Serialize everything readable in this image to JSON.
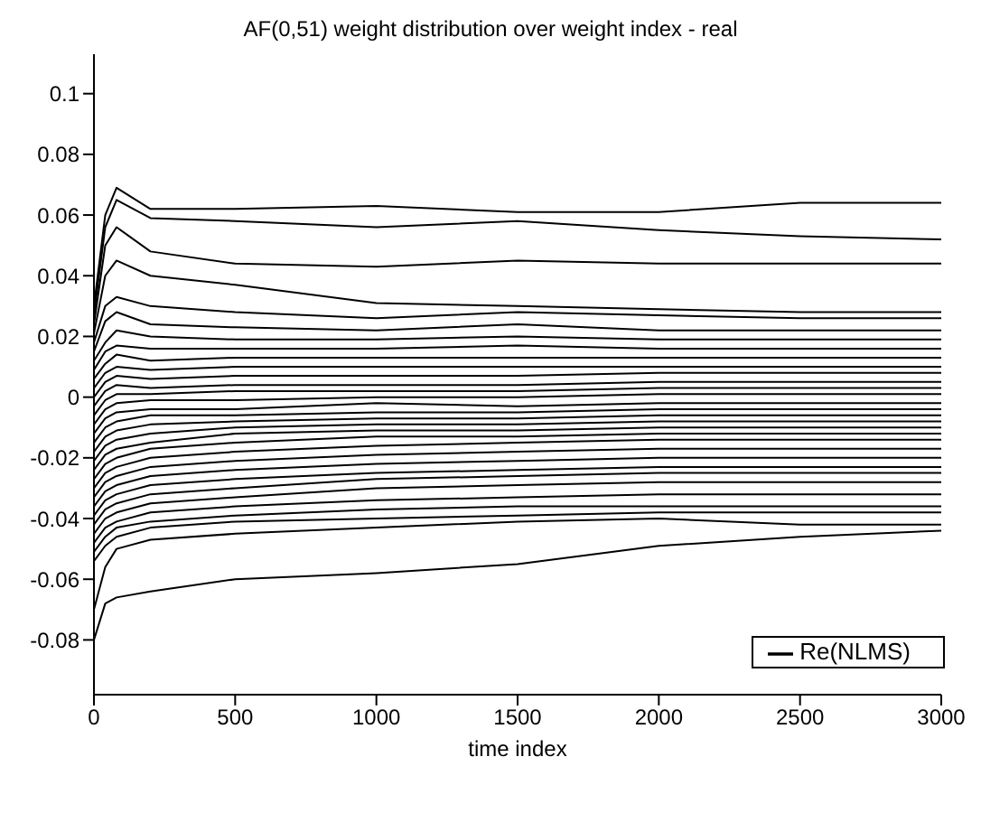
{
  "chart_data": {
    "type": "line",
    "title": "AF(0,51) weight distribution over weight index - real",
    "xlabel": "time index",
    "x": [
      0,
      40,
      80,
      200,
      500,
      1000,
      1500,
      2000,
      2500,
      3000
    ],
    "xlim": [
      0,
      3000
    ],
    "xticks": [
      0,
      500,
      1000,
      1500,
      2000,
      2500,
      3000
    ],
    "ylim": [
      -0.098,
      0.113
    ],
    "yticks": [
      -0.08,
      -0.06,
      -0.04,
      -0.02,
      0,
      0.02,
      0.04,
      0.06,
      0.08,
      0.1
    ],
    "legend": "bottom right",
    "grid": false,
    "marker": "none",
    "line_style": "solid",
    "series": [
      {
        "name": "Re(NLMS)",
        "color": "#000000",
        "values": [
          0.03,
          0.06,
          0.069,
          0.062,
          0.062,
          0.063,
          0.061,
          0.061,
          0.064,
          0.064
        ]
      },
      {
        "color": "#000000",
        "values": [
          0.027,
          0.056,
          0.065,
          0.059,
          0.058,
          0.056,
          0.058,
          0.055,
          0.053,
          0.052
        ]
      },
      {
        "color": "#000000",
        "values": [
          0.024,
          0.05,
          0.056,
          0.048,
          0.044,
          0.043,
          0.045,
          0.044,
          0.044,
          0.044
        ]
      },
      {
        "color": "#000000",
        "values": [
          0.021,
          0.04,
          0.045,
          0.04,
          0.037,
          0.031,
          0.03,
          0.029,
          0.028,
          0.028
        ]
      },
      {
        "color": "#000000",
        "values": [
          0.018,
          0.03,
          0.033,
          0.03,
          0.028,
          0.026,
          0.028,
          0.027,
          0.026,
          0.026
        ]
      },
      {
        "color": "#000000",
        "values": [
          0.015,
          0.025,
          0.028,
          0.024,
          0.023,
          0.022,
          0.024,
          0.022,
          0.022,
          0.022
        ]
      },
      {
        "color": "#000000",
        "values": [
          0.012,
          0.018,
          0.022,
          0.02,
          0.019,
          0.019,
          0.02,
          0.019,
          0.019,
          0.019
        ]
      },
      {
        "color": "#000000",
        "values": [
          0.009,
          0.015,
          0.017,
          0.016,
          0.016,
          0.016,
          0.017,
          0.016,
          0.016,
          0.016
        ]
      },
      {
        "color": "#000000",
        "values": [
          0.006,
          0.011,
          0.014,
          0.012,
          0.013,
          0.013,
          0.013,
          0.013,
          0.013,
          0.013
        ]
      },
      {
        "color": "#000000",
        "values": [
          0.003,
          0.008,
          0.01,
          0.009,
          0.01,
          0.01,
          0.01,
          0.01,
          0.01,
          0.01
        ]
      },
      {
        "color": "#000000",
        "values": [
          0.0,
          0.005,
          0.007,
          0.006,
          0.007,
          0.007,
          0.007,
          0.008,
          0.008,
          0.008
        ]
      },
      {
        "color": "#000000",
        "values": [
          -0.003,
          0.002,
          0.004,
          0.003,
          0.004,
          0.004,
          0.004,
          0.005,
          0.005,
          0.005
        ]
      },
      {
        "color": "#000000",
        "values": [
          -0.006,
          -0.001,
          0.001,
          0.001,
          0.002,
          0.002,
          0.002,
          0.003,
          0.003,
          0.003
        ]
      },
      {
        "color": "#000000",
        "values": [
          -0.009,
          -0.004,
          -0.002,
          -0.001,
          -0.001,
          0.0,
          0.0,
          0.001,
          0.001,
          0.001
        ]
      },
      {
        "color": "#000000",
        "values": [
          -0.012,
          -0.007,
          -0.005,
          -0.004,
          -0.004,
          -0.002,
          -0.003,
          -0.002,
          -0.002,
          -0.002
        ]
      },
      {
        "color": "#000000",
        "values": [
          -0.015,
          -0.01,
          -0.008,
          -0.006,
          -0.006,
          -0.005,
          -0.005,
          -0.004,
          -0.004,
          -0.004
        ]
      },
      {
        "color": "#000000",
        "values": [
          -0.018,
          -0.013,
          -0.011,
          -0.009,
          -0.008,
          -0.007,
          -0.007,
          -0.006,
          -0.006,
          -0.006
        ]
      },
      {
        "color": "#000000",
        "values": [
          -0.021,
          -0.016,
          -0.014,
          -0.012,
          -0.01,
          -0.009,
          -0.009,
          -0.008,
          -0.008,
          -0.008
        ]
      },
      {
        "color": "#000000",
        "values": [
          -0.024,
          -0.019,
          -0.017,
          -0.015,
          -0.012,
          -0.011,
          -0.011,
          -0.01,
          -0.01,
          -0.01
        ]
      },
      {
        "color": "#000000",
        "values": [
          -0.027,
          -0.022,
          -0.02,
          -0.017,
          -0.015,
          -0.013,
          -0.013,
          -0.012,
          -0.012,
          -0.012
        ]
      },
      {
        "color": "#000000",
        "values": [
          -0.03,
          -0.025,
          -0.023,
          -0.02,
          -0.018,
          -0.016,
          -0.015,
          -0.014,
          -0.014,
          -0.014
        ]
      },
      {
        "color": "#000000",
        "values": [
          -0.033,
          -0.028,
          -0.026,
          -0.023,
          -0.021,
          -0.019,
          -0.018,
          -0.017,
          -0.017,
          -0.017
        ]
      },
      {
        "color": "#000000",
        "values": [
          -0.036,
          -0.031,
          -0.029,
          -0.026,
          -0.024,
          -0.022,
          -0.021,
          -0.02,
          -0.02,
          -0.02
        ]
      },
      {
        "color": "#000000",
        "values": [
          -0.039,
          -0.034,
          -0.032,
          -0.029,
          -0.027,
          -0.025,
          -0.024,
          -0.023,
          -0.023,
          -0.023
        ]
      },
      {
        "color": "#000000",
        "values": [
          -0.042,
          -0.037,
          -0.035,
          -0.032,
          -0.03,
          -0.027,
          -0.026,
          -0.025,
          -0.025,
          -0.025
        ]
      },
      {
        "color": "#000000",
        "values": [
          -0.045,
          -0.04,
          -0.038,
          -0.035,
          -0.033,
          -0.03,
          -0.029,
          -0.028,
          -0.028,
          -0.028
        ]
      },
      {
        "color": "#000000",
        "values": [
          -0.048,
          -0.043,
          -0.041,
          -0.038,
          -0.036,
          -0.034,
          -0.033,
          -0.032,
          -0.032,
          -0.032
        ]
      },
      {
        "color": "#000000",
        "values": [
          -0.051,
          -0.046,
          -0.043,
          -0.041,
          -0.039,
          -0.037,
          -0.036,
          -0.036,
          -0.036,
          -0.036
        ]
      },
      {
        "color": "#000000",
        "values": [
          -0.054,
          -0.049,
          -0.046,
          -0.043,
          -0.041,
          -0.04,
          -0.039,
          -0.038,
          -0.038,
          -0.038
        ]
      },
      {
        "color": "#000000",
        "values": [
          -0.07,
          -0.056,
          -0.05,
          -0.047,
          -0.045,
          -0.043,
          -0.041,
          -0.04,
          -0.042,
          -0.042
        ]
      },
      {
        "color": "#000000",
        "values": [
          -0.08,
          -0.068,
          -0.066,
          -0.064,
          -0.06,
          -0.058,
          -0.055,
          -0.049,
          -0.046,
          -0.044
        ]
      }
    ]
  }
}
